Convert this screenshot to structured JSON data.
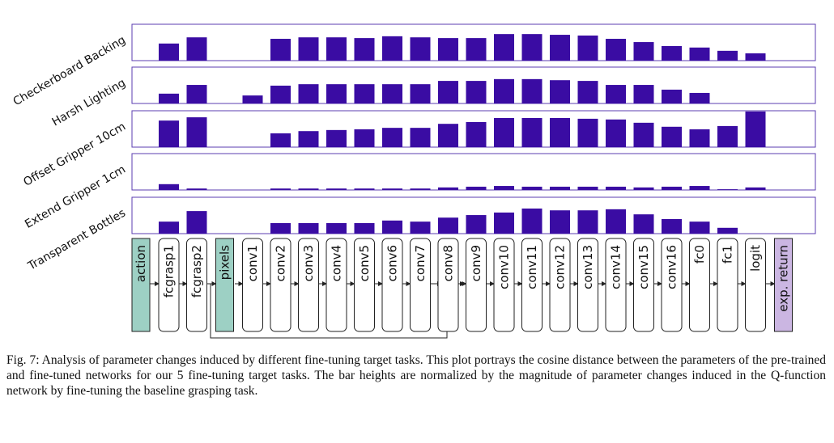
{
  "chart_data": [
    {
      "type": "bar",
      "title": "Checkerboard Backing",
      "color": "#3a0ca3",
      "values": [
        null,
        0.47,
        0.64,
        null,
        0,
        0.6,
        0.64,
        0.64,
        0.62,
        0.67,
        0.64,
        0.62,
        0.62,
        0.73,
        0.73,
        0.71,
        0.69,
        0.6,
        0.51,
        0.4,
        0.36,
        0.27,
        0.2,
        null
      ]
    },
    {
      "type": "bar",
      "title": "Harsh Lighting",
      "color": "#3a0ca3",
      "values": [
        null,
        0.27,
        0.51,
        null,
        0.22,
        0.49,
        0.53,
        0.53,
        0.53,
        0.53,
        0.53,
        0.62,
        0.62,
        0.67,
        0.67,
        0.64,
        0.62,
        0.51,
        0.51,
        0.38,
        0.29,
        0,
        0,
        null
      ]
    },
    {
      "type": "bar",
      "title": "Offset Gripper 10cm",
      "color": "#3a0ca3",
      "values": [
        null,
        0.73,
        0.82,
        null,
        0,
        0.38,
        0.44,
        0.47,
        0.49,
        0.53,
        0.53,
        0.64,
        0.69,
        0.8,
        0.8,
        0.8,
        0.78,
        0.76,
        0.67,
        0.56,
        0.49,
        0.58,
        0.98,
        null
      ]
    },
    {
      "type": "bar",
      "title": "Extend Gripper 1cm",
      "color": "#3a0ca3",
      "values": [
        null,
        0.16,
        0.04,
        null,
        0,
        0.04,
        0.04,
        0.04,
        0.04,
        0.04,
        0.04,
        0.07,
        0.09,
        0.11,
        0.09,
        0.09,
        0.09,
        0.09,
        0.07,
        0.09,
        0.11,
        0.02,
        0.07,
        null
      ]
    },
    {
      "type": "bar",
      "title": "Transparent Bottles",
      "color": "#3a0ca3",
      "values": [
        null,
        0.33,
        0.62,
        null,
        0,
        0.29,
        0.29,
        0.29,
        0.29,
        0.36,
        0.33,
        0.44,
        0.51,
        0.58,
        0.69,
        0.64,
        0.64,
        0.67,
        0.53,
        0.4,
        0.33,
        0.16,
        0,
        null
      ]
    }
  ],
  "diagram": {
    "layers": [
      "action",
      "fcgrasp1",
      "fcgrasp2",
      "pixels",
      "conv1",
      "conv2",
      "conv3",
      "conv4",
      "conv5",
      "conv6",
      "conv7",
      "conv8",
      "conv9",
      "conv10",
      "conv11",
      "conv12",
      "conv13",
      "conv14",
      "conv15",
      "conv16",
      "fc0",
      "fc1",
      "logit",
      "exp. return"
    ]
  },
  "caption": "Fig. 7: Analysis of parameter changes induced by different fine-tuning target tasks. This plot portrays the cosine distance between the parameters of the pre-trained and fine-tuned networks for our 5 fine-tuning target tasks. The bar heights are normalized by the magnitude of parameter changes induced in the Q-function network by fine-tuning the baseline grasping task."
}
